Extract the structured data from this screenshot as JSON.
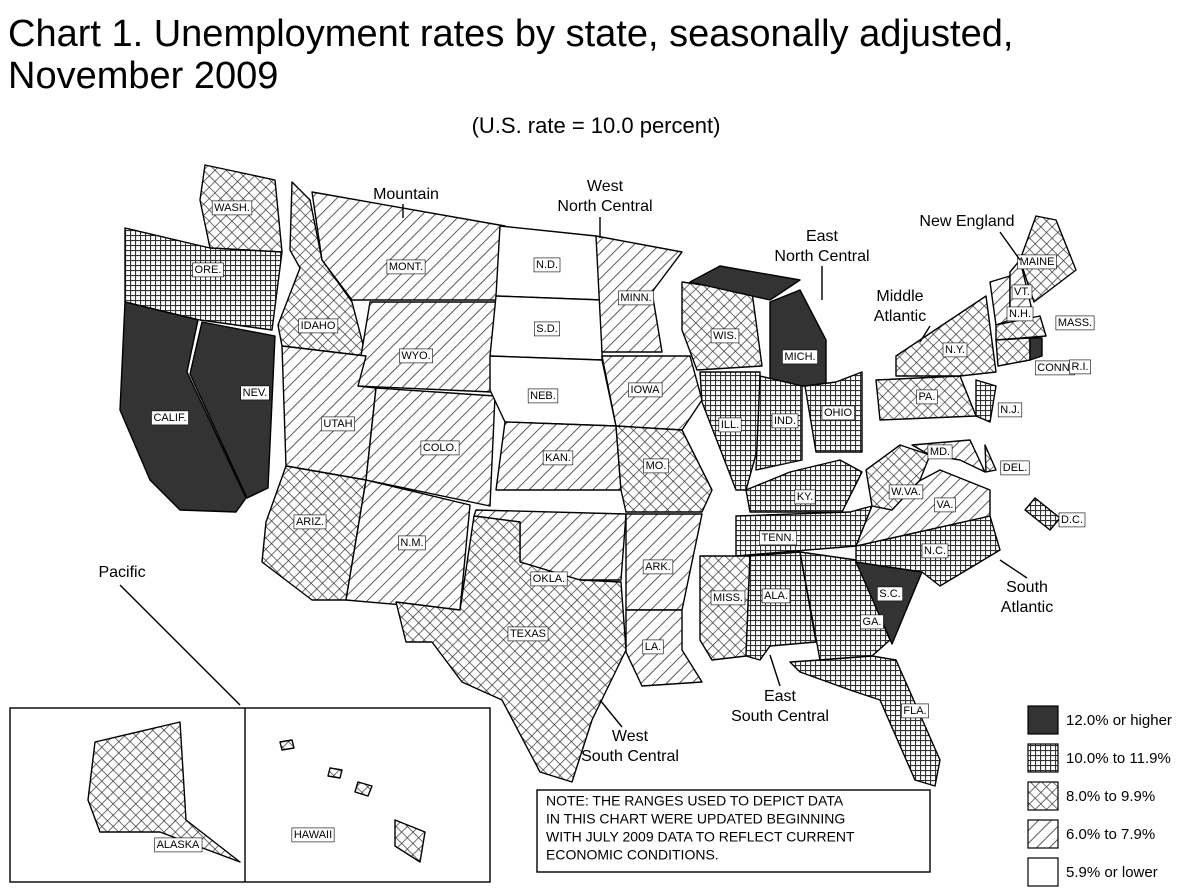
{
  "title": [
    "Chart 1.  Unemployment rates by state, seasonally adjusted,",
    "November 2009"
  ],
  "subtitle": "(U.S. rate = 10.0 percent)",
  "legend": [
    {
      "label": "12.0% or higher",
      "pattern": "solid"
    },
    {
      "label": "10.0% to 11.9%",
      "pattern": "grid"
    },
    {
      "label": "8.0% to 9.9%",
      "pattern": "cross"
    },
    {
      "label": "6.0% to 7.9%",
      "pattern": "hatch"
    },
    {
      "label": "5.9% or lower",
      "pattern": "blank"
    }
  ],
  "note": [
    "NOTE:  THE RANGES USED TO DEPICT DATA",
    "IN THIS CHART WERE UPDATED BEGINNING",
    "WITH JULY 2009 DATA TO REFLECT CURRENT",
    "ECONOMIC CONDITIONS."
  ],
  "regions": [
    {
      "lines": [
        "Pacific"
      ]
    },
    {
      "lines": [
        "Mountain"
      ]
    },
    {
      "lines": [
        "West",
        "North Central"
      ]
    },
    {
      "lines": [
        "East",
        "North Central"
      ]
    },
    {
      "lines": [
        "Middle",
        "Atlantic"
      ]
    },
    {
      "lines": [
        "New England"
      ]
    },
    {
      "lines": [
        "South",
        "Atlantic"
      ]
    },
    {
      "lines": [
        "East",
        "South Central"
      ]
    },
    {
      "lines": [
        "West",
        "South Central"
      ]
    }
  ],
  "states": [
    {
      "label": "WASH.",
      "pattern": "cross"
    },
    {
      "label": "ORE.",
      "pattern": "grid"
    },
    {
      "label": "CALIF.",
      "pattern": "solid"
    },
    {
      "label": "NEV.",
      "pattern": "solid"
    },
    {
      "label": "IDAHO",
      "pattern": "cross"
    },
    {
      "label": "MONT.",
      "pattern": "hatch"
    },
    {
      "label": "WYO.",
      "pattern": "hatch"
    },
    {
      "label": "UTAH",
      "pattern": "hatch"
    },
    {
      "label": "COLO.",
      "pattern": "hatch"
    },
    {
      "label": "ARIZ.",
      "pattern": "cross"
    },
    {
      "label": "N.M.",
      "pattern": "hatch"
    },
    {
      "label": "N.D.",
      "pattern": "blank"
    },
    {
      "label": "S.D.",
      "pattern": "blank"
    },
    {
      "label": "NEB.",
      "pattern": "blank"
    },
    {
      "label": "KAN.",
      "pattern": "hatch"
    },
    {
      "label": "OKLA.",
      "pattern": "hatch"
    },
    {
      "label": "TEXAS",
      "pattern": "cross"
    },
    {
      "label": "MINN.",
      "pattern": "hatch"
    },
    {
      "label": "IOWA",
      "pattern": "hatch"
    },
    {
      "label": "MO.",
      "pattern": "cross"
    },
    {
      "label": "ARK.",
      "pattern": "hatch"
    },
    {
      "label": "LA.",
      "pattern": "hatch"
    },
    {
      "label": "WIS.",
      "pattern": "cross"
    },
    {
      "label": "ILL.",
      "pattern": "grid"
    },
    {
      "label": "MICH.",
      "pattern": "solid"
    },
    {
      "label": "IND.",
      "pattern": "grid"
    },
    {
      "label": "OHIO",
      "pattern": "grid"
    },
    {
      "label": "KY.",
      "pattern": "grid"
    },
    {
      "label": "TENN.",
      "pattern": "grid"
    },
    {
      "label": "MISS.",
      "pattern": "cross"
    },
    {
      "label": "ALA.",
      "pattern": "grid"
    },
    {
      "label": "GA.",
      "pattern": "grid"
    },
    {
      "label": "FLA.",
      "pattern": "grid"
    },
    {
      "label": "S.C.",
      "pattern": "solid"
    },
    {
      "label": "N.C.",
      "pattern": "grid"
    },
    {
      "label": "VA.",
      "pattern": "hatch"
    },
    {
      "label": "W.VA.",
      "pattern": "cross"
    },
    {
      "label": "MD.",
      "pattern": "hatch"
    },
    {
      "label": "DEL.",
      "pattern": "cross"
    },
    {
      "label": "D.C.",
      "pattern": "grid"
    },
    {
      "label": "PA.",
      "pattern": "cross"
    },
    {
      "label": "N.Y.",
      "pattern": "cross"
    },
    {
      "label": "N.J.",
      "pattern": "grid"
    },
    {
      "label": "VT.",
      "pattern": "hatch"
    },
    {
      "label": "N.H.",
      "pattern": "hatch"
    },
    {
      "label": "MAINE",
      "pattern": "cross"
    },
    {
      "label": "MASS.",
      "pattern": "cross"
    },
    {
      "label": "CONN.",
      "pattern": "cross"
    },
    {
      "label": "R.I.",
      "pattern": "solid"
    },
    {
      "label": "ALASKA",
      "pattern": "cross"
    },
    {
      "label": "HAWAII",
      "pattern": "cross"
    }
  ]
}
